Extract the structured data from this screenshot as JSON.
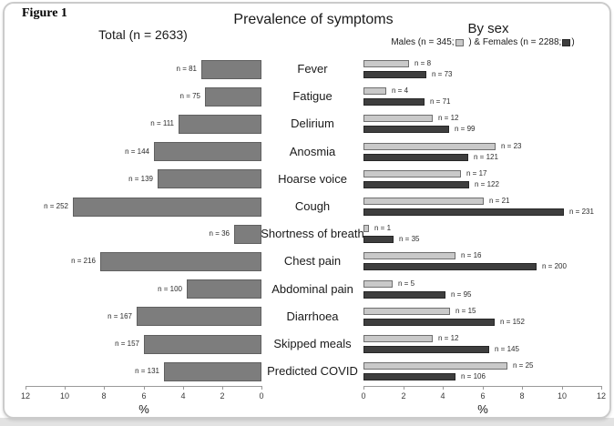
{
  "figure_label": "Figure 1",
  "chart_data": {
    "type": "bar",
    "orientation": "horizontal-mirrored",
    "title": "Prevalence of symptoms",
    "left_panel_title": "Total (n = 2633)",
    "right_panel_title": "By sex",
    "legend": {
      "males_prefix": "Males (n = 345;",
      "separator": " ) & Females (n = 2288;",
      "suffix": ")"
    },
    "categories": [
      "Fever",
      "Fatigue",
      "Delirium",
      "Anosmia",
      "Hoarse voice",
      "Cough",
      "Shortness of breath",
      "Chest pain",
      "Abdominal pain",
      "Diarrhoea",
      "Skipped meals",
      "Predicted COVID"
    ],
    "left_axis": {
      "label": "%",
      "ticks": [
        12,
        10,
        8,
        6,
        4,
        2,
        0
      ],
      "range": [
        0,
        12
      ],
      "reversed": true,
      "grid": false
    },
    "right_axis": {
      "label": "%",
      "ticks": [
        0,
        2,
        4,
        6,
        8,
        10,
        12
      ],
      "range": [
        0,
        12
      ],
      "reversed": false,
      "grid": false
    },
    "series": [
      {
        "name": "Total",
        "n": 2633,
        "panel": "left",
        "color": "#7d7d7d",
        "border_color": "#606060",
        "counts": [
          81,
          75,
          111,
          144,
          139,
          252,
          36,
          216,
          100,
          167,
          157,
          131
        ],
        "pct": [
          3.08,
          2.85,
          4.22,
          5.47,
          5.28,
          9.57,
          1.37,
          8.2,
          3.8,
          6.34,
          5.96,
          4.98
        ],
        "labels": [
          "n = 81",
          "n = 75",
          "n = 111",
          "n = 144",
          "n = 139",
          "n = 252",
          "n = 36",
          "n = 216",
          "n = 100",
          "n = 167",
          "n = 157",
          "n = 131"
        ]
      },
      {
        "name": "Males",
        "n": 345,
        "panel": "right",
        "color": "#c9c9c9",
        "border_color": "#6f6f6f",
        "counts": [
          8,
          4,
          12,
          23,
          17,
          21,
          1,
          16,
          5,
          15,
          12,
          25
        ],
        "pct": [
          2.32,
          1.16,
          3.48,
          6.67,
          4.93,
          6.09,
          0.29,
          4.64,
          1.45,
          4.35,
          3.48,
          7.25
        ],
        "labels": [
          "n = 8",
          "n = 4",
          "n = 12",
          "n = 23",
          "n = 17",
          "n = 21",
          "n = 1",
          "n = 16",
          "n = 5",
          "n = 15",
          "n = 12",
          "n = 25"
        ]
      },
      {
        "name": "Females",
        "n": 2288,
        "panel": "right",
        "color": "#3e3e3e",
        "border_color": "#262626",
        "counts": [
          73,
          71,
          99,
          121,
          122,
          231,
          35,
          200,
          95,
          152,
          145,
          106
        ],
        "pct": [
          3.19,
          3.1,
          4.33,
          5.29,
          5.33,
          10.1,
          1.53,
          8.74,
          4.15,
          6.64,
          6.34,
          4.63
        ],
        "labels": [
          "n = 73",
          "n = 71",
          "n = 99",
          "n = 121",
          "n = 122",
          "n = 231",
          "n = 35",
          "n = 200",
          "n = 95",
          "n = 152",
          "n = 145",
          "n = 106"
        ]
      }
    ]
  }
}
